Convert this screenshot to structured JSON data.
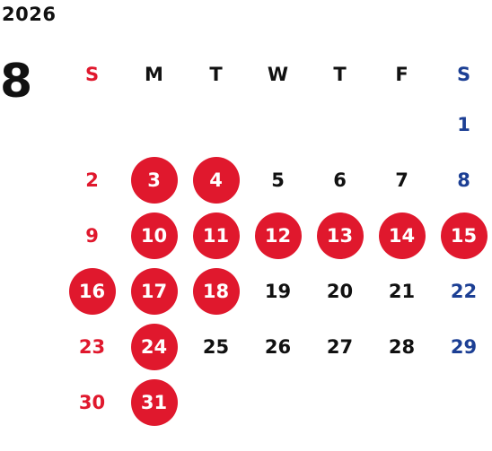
{
  "year": "2026",
  "month": "8",
  "colors": {
    "sunday": "#e0182d",
    "saturday": "#1c3f94",
    "weekday": "#111111",
    "highlight_bg": "#e0182d",
    "highlight_text": "#ffffff"
  },
  "weekday_headers": [
    "S",
    "M",
    "T",
    "W",
    "T",
    "F",
    "S"
  ],
  "weeks": [
    [
      {
        "day": "",
        "highlight": false
      },
      {
        "day": "",
        "highlight": false
      },
      {
        "day": "",
        "highlight": false
      },
      {
        "day": "",
        "highlight": false
      },
      {
        "day": "",
        "highlight": false
      },
      {
        "day": "",
        "highlight": false
      },
      {
        "day": "1",
        "highlight": false
      }
    ],
    [
      {
        "day": "2",
        "highlight": false
      },
      {
        "day": "3",
        "highlight": true
      },
      {
        "day": "4",
        "highlight": true
      },
      {
        "day": "5",
        "highlight": false
      },
      {
        "day": "6",
        "highlight": false
      },
      {
        "day": "7",
        "highlight": false
      },
      {
        "day": "8",
        "highlight": false
      }
    ],
    [
      {
        "day": "9",
        "highlight": false
      },
      {
        "day": "10",
        "highlight": true
      },
      {
        "day": "11",
        "highlight": true
      },
      {
        "day": "12",
        "highlight": true
      },
      {
        "day": "13",
        "highlight": true
      },
      {
        "day": "14",
        "highlight": true
      },
      {
        "day": "15",
        "highlight": true
      }
    ],
    [
      {
        "day": "16",
        "highlight": true
      },
      {
        "day": "17",
        "highlight": true
      },
      {
        "day": "18",
        "highlight": true
      },
      {
        "day": "19",
        "highlight": false
      },
      {
        "day": "20",
        "highlight": false
      },
      {
        "day": "21",
        "highlight": false
      },
      {
        "day": "22",
        "highlight": false
      }
    ],
    [
      {
        "day": "23",
        "highlight": false
      },
      {
        "day": "24",
        "highlight": true
      },
      {
        "day": "25",
        "highlight": false
      },
      {
        "day": "26",
        "highlight": false
      },
      {
        "day": "27",
        "highlight": false
      },
      {
        "day": "28",
        "highlight": false
      },
      {
        "day": "29",
        "highlight": false
      }
    ],
    [
      {
        "day": "30",
        "highlight": false
      },
      {
        "day": "31",
        "highlight": true
      },
      {
        "day": "",
        "highlight": false
      },
      {
        "day": "",
        "highlight": false
      },
      {
        "day": "",
        "highlight": false
      },
      {
        "day": "",
        "highlight": false
      },
      {
        "day": "",
        "highlight": false
      }
    ]
  ]
}
